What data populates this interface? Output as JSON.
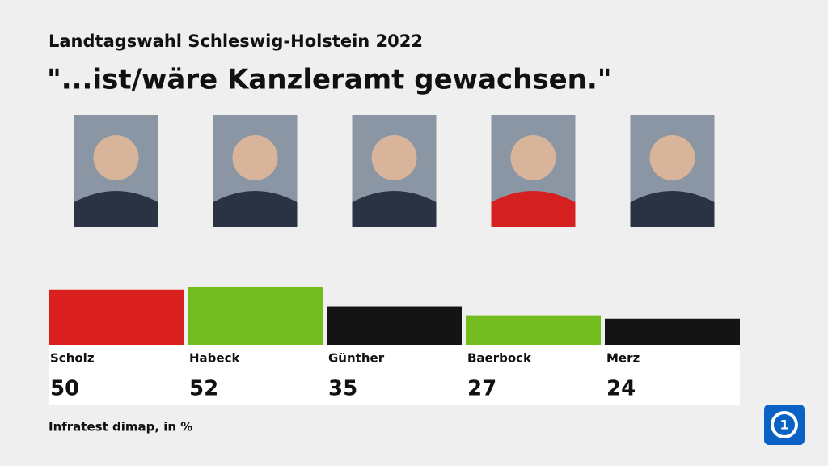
{
  "chart_data": {
    "type": "bar",
    "title": "Landtagswahl Schleswig-Holstein 2022",
    "subtitle": "\"...ist/wäre Kanzleramt gewachsen.\"",
    "source": "Infratest dimap, in %",
    "categories": [
      "Scholz",
      "Habeck",
      "Günther",
      "Baerbock",
      "Merz"
    ],
    "values": [
      50,
      52,
      35,
      27,
      24
    ],
    "colors": [
      "#d9201e",
      "#74bb20",
      "#141414",
      "#74bb20",
      "#141414"
    ]
  }
}
